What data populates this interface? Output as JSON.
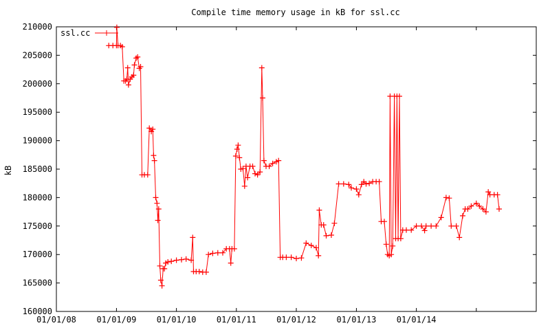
{
  "chart_data": {
    "type": "line",
    "title": "Compile time memory usage in kB for ssl.cc",
    "xlabel": "",
    "ylabel": "kB",
    "ylim": [
      160000,
      210000
    ],
    "yticks": [
      "160000",
      "165000",
      "170000",
      "175000",
      "180000",
      "185000",
      "190000",
      "195000",
      "200000",
      "205000",
      "210000"
    ],
    "xlim": [
      "2008-01-01",
      "2016-01-01"
    ],
    "xticks": [
      "01/01/08",
      "01/01/09",
      "01/01/10",
      "01/01/11",
      "01/01/12",
      "01/01/13",
      "01/01/14"
    ],
    "grid": false,
    "legend_position": "top-left",
    "series": [
      {
        "name": "ssl.cc",
        "color": "#ff0000",
        "marker": "plus",
        "points": [
          [
            "2008-11-15",
            206700
          ],
          [
            "2008-12-10",
            206700
          ],
          [
            "2009-01-01",
            206700
          ],
          [
            "2009-01-03",
            209900
          ],
          [
            "2009-01-10",
            206700
          ],
          [
            "2009-01-25",
            206700
          ],
          [
            "2009-02-05",
            206500
          ],
          [
            "2009-02-15",
            200500
          ],
          [
            "2009-02-25",
            200500
          ],
          [
            "2009-03-05",
            200800
          ],
          [
            "2009-03-10",
            202800
          ],
          [
            "2009-03-15",
            199800
          ],
          [
            "2009-03-25",
            200800
          ],
          [
            "2009-04-05",
            201200
          ],
          [
            "2009-04-15",
            201500
          ],
          [
            "2009-04-20",
            203300
          ],
          [
            "2009-05-01",
            204500
          ],
          [
            "2009-05-10",
            204700
          ],
          [
            "2009-05-20",
            202700
          ],
          [
            "2009-05-28",
            203000
          ],
          [
            "2009-06-05",
            184000
          ],
          [
            "2009-06-20",
            184000
          ],
          [
            "2009-07-10",
            184000
          ],
          [
            "2009-07-20",
            192200
          ],
          [
            "2009-08-01",
            191600
          ],
          [
            "2009-08-10",
            192000
          ],
          [
            "2009-08-15",
            187400
          ],
          [
            "2009-08-20",
            186500
          ],
          [
            "2009-08-28",
            180000
          ],
          [
            "2009-09-05",
            179000
          ],
          [
            "2009-09-10",
            176000
          ],
          [
            "2009-09-15",
            178000
          ],
          [
            "2009-09-22",
            168000
          ],
          [
            "2009-09-28",
            165500
          ],
          [
            "2009-10-05",
            164500
          ],
          [
            "2009-10-12",
            167500
          ],
          [
            "2009-10-20",
            167500
          ],
          [
            "2009-10-28",
            168500
          ],
          [
            "2009-11-10",
            168700
          ],
          [
            "2009-12-01",
            168800
          ],
          [
            "2010-01-01",
            169000
          ],
          [
            "2010-02-01",
            169100
          ],
          [
            "2010-03-01",
            169200
          ],
          [
            "2010-04-01",
            169000
          ],
          [
            "2010-04-10",
            173000
          ],
          [
            "2010-04-15",
            167000
          ],
          [
            "2010-05-01",
            167000
          ],
          [
            "2010-05-20",
            167000
          ],
          [
            "2010-06-10",
            166900
          ],
          [
            "2010-07-01",
            166900
          ],
          [
            "2010-07-15",
            170000
          ],
          [
            "2010-08-10",
            170200
          ],
          [
            "2010-09-10",
            170300
          ],
          [
            "2010-10-10",
            170300
          ],
          [
            "2010-11-01",
            171000
          ],
          [
            "2010-11-20",
            171000
          ],
          [
            "2010-11-28",
            168500
          ],
          [
            "2010-12-05",
            171000
          ],
          [
            "2010-12-20",
            171000
          ],
          [
            "2010-12-28",
            187300
          ],
          [
            "2011-01-05",
            188500
          ],
          [
            "2011-01-12",
            189200
          ],
          [
            "2011-01-20",
            187000
          ],
          [
            "2011-01-28",
            185000
          ],
          [
            "2011-02-10",
            185100
          ],
          [
            "2011-02-20",
            182000
          ],
          [
            "2011-03-01",
            185500
          ],
          [
            "2011-03-10",
            183500
          ],
          [
            "2011-03-25",
            185500
          ],
          [
            "2011-04-10",
            185500
          ],
          [
            "2011-04-25",
            184200
          ],
          [
            "2011-05-10",
            184000
          ],
          [
            "2011-05-25",
            184500
          ],
          [
            "2011-06-05",
            202800
          ],
          [
            "2011-06-10",
            197500
          ],
          [
            "2011-06-18",
            186500
          ],
          [
            "2011-07-01",
            185500
          ],
          [
            "2011-07-20",
            185500
          ],
          [
            "2011-08-10",
            186000
          ],
          [
            "2011-09-01",
            186300
          ],
          [
            "2011-09-15",
            186500
          ],
          [
            "2011-09-25",
            169500
          ],
          [
            "2011-10-10",
            169500
          ],
          [
            "2011-11-01",
            169500
          ],
          [
            "2011-12-01",
            169500
          ],
          [
            "2012-01-01",
            169300
          ],
          [
            "2012-02-01",
            169400
          ],
          [
            "2012-03-01",
            172000
          ],
          [
            "2012-04-01",
            171600
          ],
          [
            "2012-05-01",
            171200
          ],
          [
            "2012-05-15",
            169800
          ],
          [
            "2012-05-20",
            177800
          ],
          [
            "2012-06-01",
            175200
          ],
          [
            "2012-06-15",
            175200
          ],
          [
            "2012-07-01",
            173300
          ],
          [
            "2012-08-01",
            173400
          ],
          [
            "2012-08-20",
            175500
          ],
          [
            "2012-09-15",
            182400
          ],
          [
            "2012-10-15",
            182400
          ],
          [
            "2012-11-15",
            182300
          ],
          [
            "2012-12-01",
            181700
          ],
          [
            "2013-01-01",
            181500
          ],
          [
            "2013-01-15",
            180500
          ],
          [
            "2013-02-01",
            182300
          ],
          [
            "2013-02-15",
            182800
          ],
          [
            "2013-03-01",
            182400
          ],
          [
            "2013-03-20",
            182500
          ],
          [
            "2013-04-10",
            182800
          ],
          [
            "2013-05-01",
            182800
          ],
          [
            "2013-05-20",
            182800
          ],
          [
            "2013-06-01",
            175800
          ],
          [
            "2013-06-20",
            175800
          ],
          [
            "2013-07-01",
            171800
          ],
          [
            "2013-07-10",
            170000
          ],
          [
            "2013-07-20",
            169800
          ],
          [
            "2013-07-25",
            197800
          ],
          [
            "2013-08-01",
            170000
          ],
          [
            "2013-08-10",
            171500
          ],
          [
            "2013-08-20",
            197800
          ],
          [
            "2013-08-28",
            172800
          ],
          [
            "2013-09-05",
            197800
          ],
          [
            "2013-09-12",
            172800
          ],
          [
            "2013-09-20",
            197800
          ],
          [
            "2013-09-28",
            172800
          ],
          [
            "2013-10-10",
            174300
          ],
          [
            "2013-11-01",
            174300
          ],
          [
            "2013-12-01",
            174300
          ],
          [
            "2014-01-01",
            175000
          ],
          [
            "2014-02-01",
            175000
          ],
          [
            "2014-02-20",
            174200
          ],
          [
            "2014-03-01",
            175000
          ],
          [
            "2014-04-01",
            175000
          ],
          [
            "2014-05-01",
            175000
          ],
          [
            "2014-06-01",
            176500
          ],
          [
            "2014-07-01",
            180000
          ],
          [
            "2014-07-20",
            179900
          ],
          [
            "2014-08-01",
            175000
          ],
          [
            "2014-09-01",
            175000
          ],
          [
            "2014-09-20",
            173000
          ],
          [
            "2014-10-10",
            176800
          ],
          [
            "2014-10-25",
            178000
          ],
          [
            "2014-11-10",
            178000
          ],
          [
            "2014-12-01",
            178500
          ],
          [
            "2015-01-01",
            179000
          ],
          [
            "2015-01-20",
            178500
          ],
          [
            "2015-02-10",
            178000
          ],
          [
            "2015-03-01",
            177500
          ],
          [
            "2015-03-15",
            181000
          ],
          [
            "2015-03-25",
            180500
          ],
          [
            "2015-04-20",
            180500
          ],
          [
            "2015-05-10",
            180500
          ],
          [
            "2015-05-20",
            178000
          ]
        ]
      }
    ]
  }
}
